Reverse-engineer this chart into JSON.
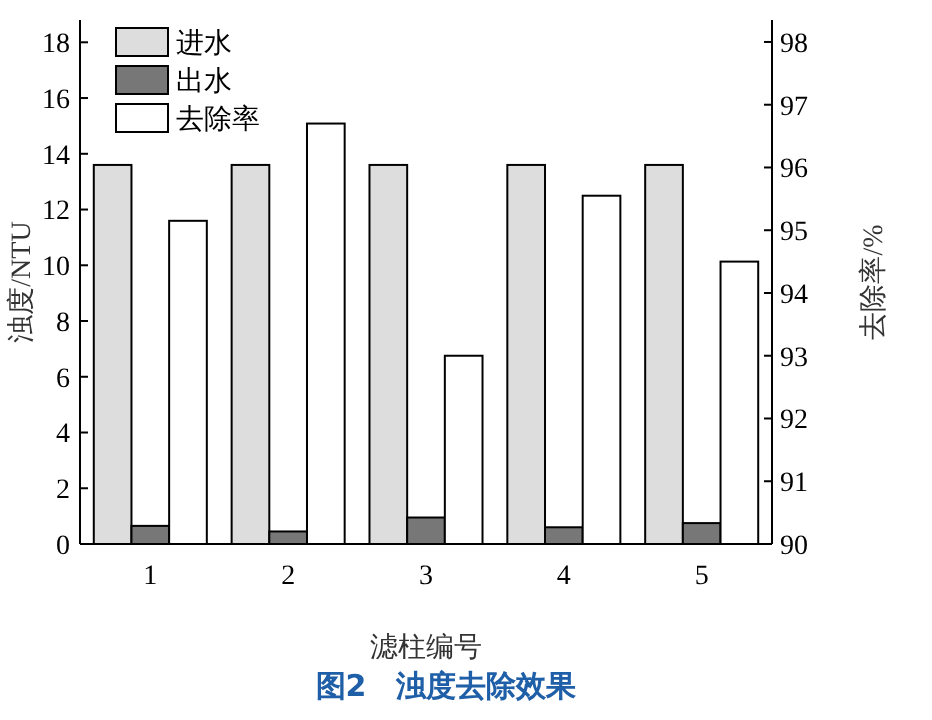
{
  "chart_data": {
    "type": "bar",
    "title": "图2　浊度去除效果",
    "xlabel": "滤柱编号",
    "ylabel": "浊度/NTU",
    "y2label": "去除率/%",
    "categories": [
      "1",
      "2",
      "3",
      "4",
      "5"
    ],
    "series": [
      {
        "name": "进水",
        "color": "#dddddd",
        "values": [
          13.6,
          13.6,
          13.6,
          13.6,
          13.6
        ]
      },
      {
        "name": "出水",
        "color": "#777777",
        "values": [
          0.65,
          0.45,
          0.95,
          0.6,
          0.75
        ]
      },
      {
        "name": "去除率",
        "color": "#ffffff",
        "axis": "y2",
        "values": [
          95.15,
          96.7,
          93.0,
          95.55,
          94.5
        ]
      }
    ],
    "ylim": [
      0,
      18.8
    ],
    "yticks": [
      0,
      2,
      4,
      6,
      8,
      10,
      12,
      14,
      16,
      18
    ],
    "y2lim": [
      90,
      98.35
    ],
    "y2ticks": [
      90,
      91,
      92,
      93,
      94,
      95,
      96,
      97,
      98
    ],
    "legend": "top left",
    "grid": false
  }
}
